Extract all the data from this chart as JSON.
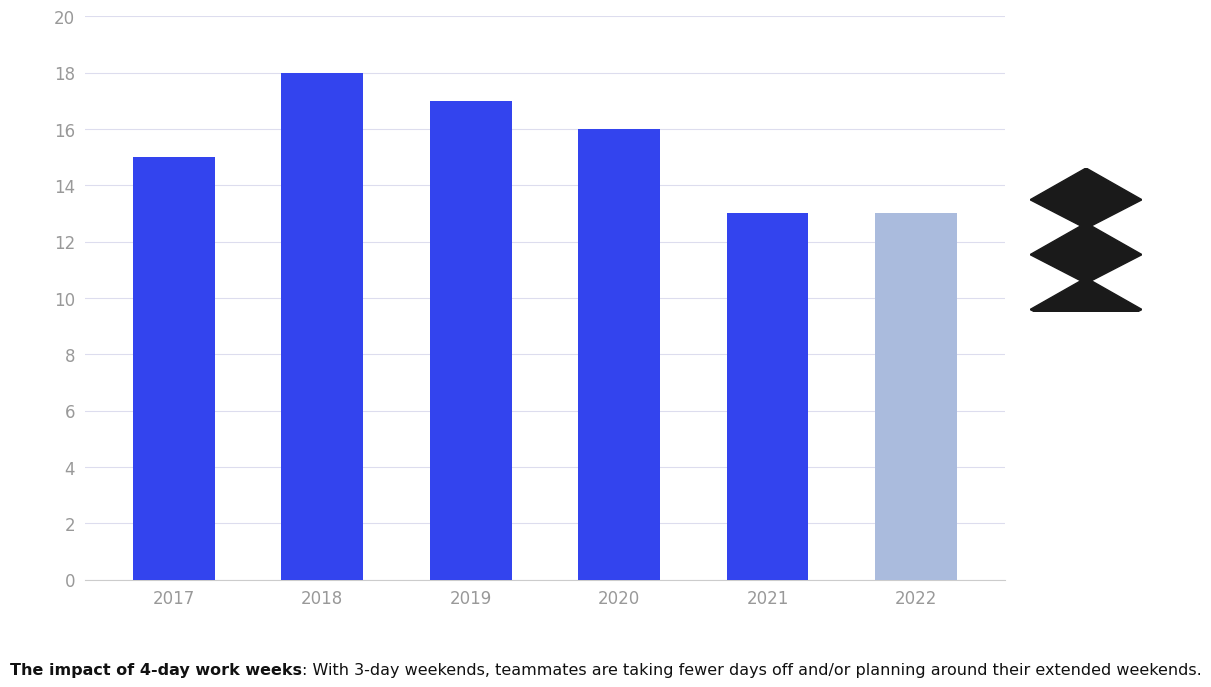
{
  "categories": [
    "2017",
    "2018",
    "2019",
    "2020",
    "2021",
    "2022"
  ],
  "values": [
    15,
    18,
    17,
    16,
    13,
    13
  ],
  "bar_colors": [
    "#3344EE",
    "#3344EE",
    "#3344EE",
    "#3344EE",
    "#3344EE",
    "#AABBDD"
  ],
  "ylim": [
    0,
    20
  ],
  "yticks": [
    0,
    2,
    4,
    6,
    8,
    10,
    12,
    14,
    16,
    18,
    20
  ],
  "background_color": "#FFFFFF",
  "grid_color": "#DDDDEE",
  "caption_bold": "The impact of 4-day work weeks",
  "caption_normal": ": With 3-day weekends, teammates are taking fewer days off and/or planning around their extended weekends.",
  "tick_color": "#AAAAAA",
  "bar_width": 0.55,
  "tick_fontsize": 12
}
